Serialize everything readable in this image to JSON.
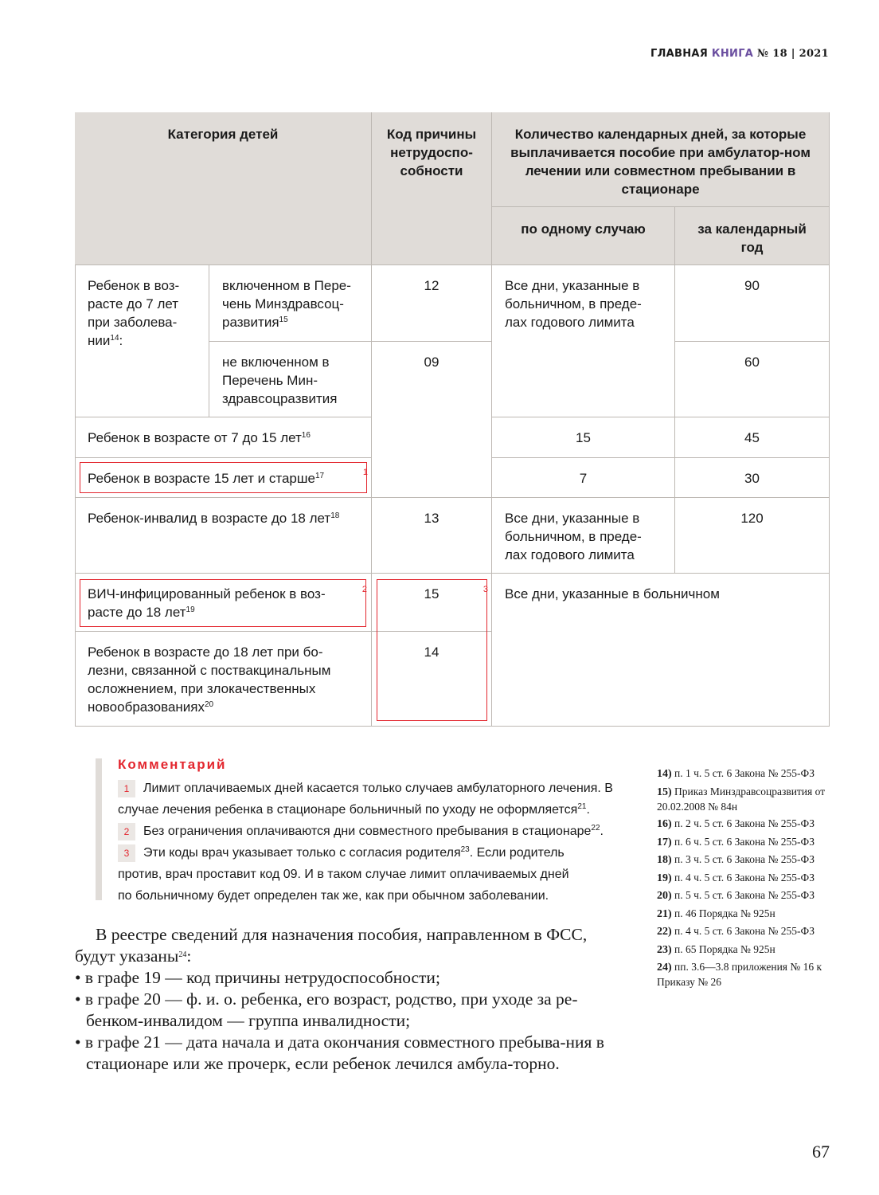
{
  "header": {
    "brand_part1": "ГЛАВНАЯ",
    "brand_part2": "КНИГА",
    "issue": "№ 18 | 2021",
    "brand_accent": "#6b4fa0"
  },
  "table": {
    "headers": {
      "category": "Категория детей",
      "code": "Код причины нетрудоспо-собности",
      "days": "Количество календарных дней, за которые выплачивается пособие при амбулатор-ном лечении или совместном пребывании в стационаре",
      "per_case": "по одному случаю",
      "per_year": "за календарный год"
    },
    "group_under7": {
      "text": "Ребенок в воз-расте до 7 лет при заболева-нии",
      "sup": "14"
    },
    "rows": [
      {
        "sub": "включенном в Пере-чень Минздравсоц-развития",
        "sup": "15",
        "code": "12",
        "per_case": "Все дни, указанные в больничном, в преде-лах годового лимита",
        "per_year": "90"
      },
      {
        "sub": "не включенном в Перечень Мин-здравсоцразвития",
        "code": "09",
        "per_year": "60"
      },
      {
        "category": "Ребенок в возрасте от 7 до 15 лет",
        "sup": "16",
        "per_case": "15",
        "per_year": "45"
      },
      {
        "category": "Ребенок в возрасте 15 лет и старше",
        "sup": "17",
        "per_case": "7",
        "per_year": "30",
        "marker": "1"
      },
      {
        "category": "Ребенок-инвалид в возрасте до 18 лет",
        "sup": "18",
        "code": "13",
        "per_case": "Все дни, указанные в больничном, в преде-лах годового лимита",
        "per_year": "120"
      },
      {
        "category": "ВИЧ-инфицированный ребенок в воз-расте до 18 лет",
        "sup": "19",
        "code": "15",
        "days": "Все дни, указанные в больничном",
        "marker": "2",
        "code_marker": "3"
      },
      {
        "category": "Ребенок в возрасте до 18 лет при бо-лезни, связанной с поствакцинальным осложнением, при злокачественных новообразованиях",
        "sup": "20",
        "code": "14"
      }
    ]
  },
  "comment": {
    "title": "Комментарий",
    "items": [
      {
        "marker": "1",
        "text": "Лимит оплачиваемых дней касается только случаев амбулаторного лечения. В случае лечения ребенка в стационаре больничный по уходу не оформляется",
        "sup": "21",
        "after": "."
      },
      {
        "marker": "2",
        "text": "Без ограничения оплачиваются дни совместного пребывания в стационаре",
        "sup": "22",
        "after": "."
      },
      {
        "marker": "3",
        "text": "Эти коды врач указывает только с согласия родителя",
        "sup": "23",
        "after": ". Если родитель против, врач проставит код 09. И в таком случае лимит оплачиваемых дней по больничному будет определен так же, как при обычном заболевании."
      }
    ],
    "accent": "#e3262e"
  },
  "body": {
    "intro": "В реестре сведений для назначения пособия, направленном в ФСС, будут указаны",
    "intro_sup": "24",
    "intro_after": ":",
    "bullets": [
      "в графе 19 — код причины нетрудоспособности;",
      "в графе 20 — ф. и. о. ребенка, его возраст, родство, при уходе за ре-бенком-инвалидом — группа инвалидности;",
      "в графе 21 — дата начала и дата окончания совместного пребыва-ния в стационаре или же прочерк, если ребенок лечился амбула-торно."
    ]
  },
  "footnotes": [
    {
      "n": "14)",
      "t": "п. 1 ч. 5 ст. 6 Закона № 255-ФЗ"
    },
    {
      "n": "15)",
      "t": "Приказ Минздравсоцразвития от 20.02.2008 № 84н"
    },
    {
      "n": "16)",
      "t": "п. 2 ч. 5 ст. 6 Закона № 255-ФЗ"
    },
    {
      "n": "17)",
      "t": "п. 6 ч. 5 ст. 6 Закона № 255-ФЗ"
    },
    {
      "n": "18)",
      "t": "п. 3 ч. 5 ст. 6 Закона № 255-ФЗ"
    },
    {
      "n": "19)",
      "t": "п. 4 ч. 5 ст. 6 Закона № 255-ФЗ"
    },
    {
      "n": "20)",
      "t": "п. 5 ч. 5 ст. 6 Закона № 255-ФЗ"
    },
    {
      "n": "21)",
      "t": "п. 46 Порядка № 925н"
    },
    {
      "n": "22)",
      "t": "п. 4 ч. 5 ст. 6 Закона № 255-ФЗ"
    },
    {
      "n": "23)",
      "t": "п. 65 Порядка № 925н"
    },
    {
      "n": "24)",
      "t": "пп. 3.6—3.8 приложения № 16 к Приказу № 26"
    }
  ],
  "page_number": "67"
}
